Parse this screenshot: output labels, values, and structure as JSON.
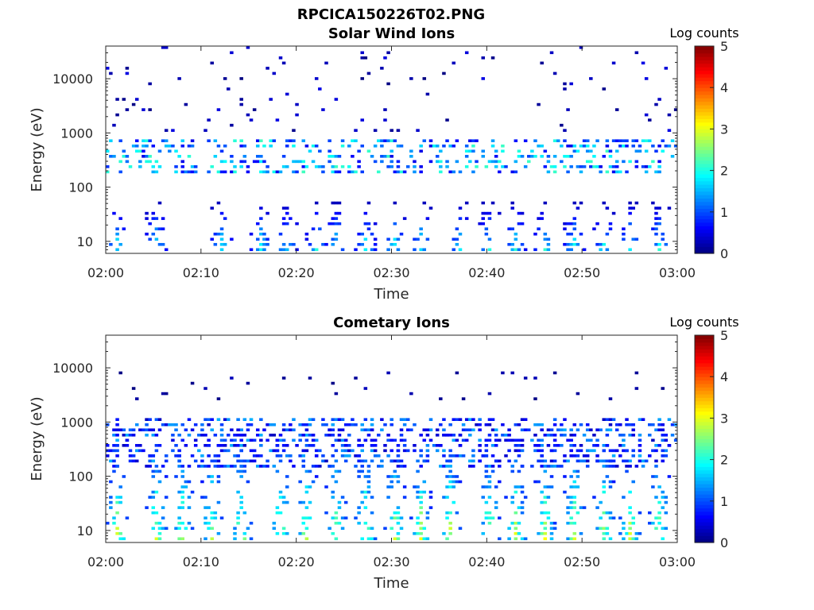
{
  "figure": {
    "title": "RPCICA150226T02.PNG"
  },
  "colors": {
    "colormap": [
      "#00007f",
      "#0000ff",
      "#007fff",
      "#00ffff",
      "#7fff7f",
      "#ffff00",
      "#ff7f00",
      "#ff0000",
      "#7f0000"
    ]
  },
  "chart_data": [
    {
      "type": "heatmap",
      "title": "Solar Wind Ions",
      "xlabel": "Time",
      "ylabel": "Energy (eV)",
      "xlim": [
        "02:00",
        "03:00"
      ],
      "x_ticks": [
        "02:00",
        "02:10",
        "02:20",
        "02:30",
        "02:40",
        "02:50",
        "03:00"
      ],
      "y_scale": "log",
      "ylim": [
        6,
        40000
      ],
      "y_ticks": [
        {
          "value": 10,
          "label": "10"
        },
        {
          "value": 100,
          "label": "100"
        },
        {
          "value": 1000,
          "label": "1000"
        },
        {
          "value": 10000,
          "label": "10000"
        }
      ],
      "colorbar": {
        "title": "Log counts",
        "range": [
          0,
          5
        ],
        "ticks": [
          "0",
          "1",
          "2",
          "3",
          "4",
          "5"
        ]
      },
      "features": [
        {
          "band": "solar-wind",
          "energy_eV": [
            180,
            600
          ],
          "log_counts": [
            0.5,
            2.2
          ]
        },
        {
          "band": "low-energy-bursts",
          "energy_eV": [
            7,
            35
          ],
          "log_counts": [
            0.3,
            2.2
          ],
          "times": [
            "02:01",
            "02:05",
            "02:12",
            "02:16",
            "02:19",
            "02:22",
            "02:24",
            "02:27",
            "02:30",
            "02:33",
            "02:37",
            "02:40",
            "02:43",
            "02:46",
            "02:49",
            "02:52",
            "02:55",
            "02:58"
          ]
        },
        {
          "band": "sparse-high-energy",
          "energy_eV": [
            1000,
            40000
          ],
          "log_counts": [
            0,
            0.5
          ]
        }
      ]
    },
    {
      "type": "heatmap",
      "title": "Cometary Ions",
      "xlabel": "Time",
      "ylabel": "Energy (eV)",
      "xlim": [
        "02:00",
        "03:00"
      ],
      "x_ticks": [
        "02:00",
        "02:10",
        "02:20",
        "02:30",
        "02:40",
        "02:50",
        "03:00"
      ],
      "y_scale": "log",
      "ylim": [
        6,
        40000
      ],
      "y_ticks": [
        {
          "value": 10,
          "label": "10"
        },
        {
          "value": 100,
          "label": "100"
        },
        {
          "value": 1000,
          "label": "1000"
        },
        {
          "value": 10000,
          "label": "10000"
        }
      ],
      "colorbar": {
        "title": "Log counts",
        "range": [
          0,
          5
        ],
        "ticks": [
          "0",
          "1",
          "2",
          "3",
          "4",
          "5"
        ]
      },
      "features": [
        {
          "band": "upper-band",
          "energy_eV": [
            150,
            800
          ],
          "log_counts": [
            0.3,
            1.5
          ]
        },
        {
          "band": "spikes",
          "energy_eV": [
            7,
            500
          ],
          "log_counts": [
            0.5,
            3.2
          ],
          "times": [
            "02:01",
            "02:05",
            "02:08",
            "02:11",
            "02:14",
            "02:18",
            "02:21",
            "02:24",
            "02:27",
            "02:30",
            "02:33",
            "02:36",
            "02:40",
            "02:43",
            "02:46",
            "02:49",
            "02:52",
            "02:55",
            "02:58"
          ]
        },
        {
          "band": "isolated-high",
          "energy_eV": [
            2500,
            6500
          ],
          "log_counts": [
            0,
            0.3
          ]
        }
      ]
    }
  ]
}
